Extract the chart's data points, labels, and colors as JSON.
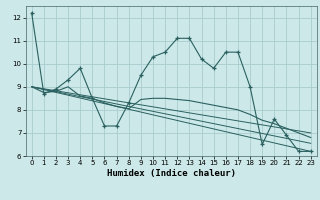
{
  "xlabel": "Humidex (Indice chaleur)",
  "background_color": "#cce8e8",
  "grid_color": "#aacccc",
  "line_color": "#2a6060",
  "xlim": [
    -0.5,
    23.5
  ],
  "ylim": [
    6,
    12.5
  ],
  "yticks": [
    6,
    7,
    8,
    9,
    10,
    11,
    12
  ],
  "xticks": [
    0,
    1,
    2,
    3,
    4,
    5,
    6,
    7,
    8,
    9,
    10,
    11,
    12,
    13,
    14,
    15,
    16,
    17,
    18,
    19,
    20,
    21,
    22,
    23
  ],
  "series1_x": [
    0,
    1,
    2,
    3,
    4,
    5,
    6,
    7,
    8,
    9,
    10,
    11,
    12,
    13,
    14,
    15,
    16,
    17,
    18,
    19,
    20,
    21,
    22,
    23
  ],
  "series1_y": [
    12.2,
    8.7,
    8.9,
    9.3,
    9.8,
    8.5,
    7.3,
    7.3,
    8.3,
    9.5,
    10.3,
    10.5,
    11.1,
    11.1,
    10.2,
    9.8,
    10.5,
    10.5,
    9.0,
    6.5,
    7.6,
    6.9,
    6.2,
    6.2
  ],
  "series2_x": [
    0,
    1,
    2,
    3,
    4,
    5,
    6,
    7,
    8,
    9,
    10,
    11,
    12,
    13,
    14,
    15,
    16,
    17,
    18,
    19,
    20,
    21,
    22,
    23
  ],
  "series2_y": [
    9.0,
    8.75,
    8.8,
    9.0,
    8.6,
    8.5,
    8.3,
    8.15,
    8.05,
    8.45,
    8.5,
    8.5,
    8.45,
    8.4,
    8.3,
    8.2,
    8.1,
    8.0,
    7.8,
    7.55,
    7.4,
    7.2,
    7.0,
    6.8
  ],
  "series3_x": [
    0,
    23
  ],
  "series3_y": [
    9.0,
    6.2
  ],
  "series4_x": [
    0,
    23
  ],
  "series4_y": [
    9.0,
    6.55
  ],
  "series5_x": [
    0,
    23
  ],
  "series5_y": [
    9.0,
    7.0
  ]
}
